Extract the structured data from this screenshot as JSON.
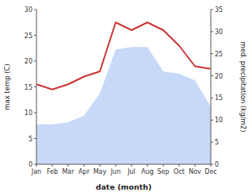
{
  "chart_data": {
    "type": "line",
    "xlabel": "date (month)",
    "ylabel": "max temp (C)",
    "y2label": "med. precipitation (kg/m2)",
    "categories": [
      "Jan",
      "Feb",
      "Mar",
      "Apr",
      "May",
      "Jun",
      "Jul",
      "Aug",
      "Sep",
      "Oct",
      "Nov",
      "Dec"
    ],
    "series": [
      {
        "type": "area",
        "axis": "y2",
        "color": "#c8d8f8",
        "values": [
          9.0,
          9.0,
          9.5,
          11.0,
          16.0,
          26.0,
          26.5,
          26.5,
          21.0,
          20.5,
          19.0,
          13.0
        ]
      },
      {
        "type": "line",
        "color": "#cc3333",
        "values": [
          15.5,
          14.5,
          15.5,
          17.0,
          18.0,
          27.5,
          26.0,
          27.5,
          26.0,
          23.0,
          19.0,
          18.5
        ]
      }
    ],
    "ylim": [
      0,
      30
    ],
    "yticks": [
      0,
      5,
      10,
      15,
      20,
      25,
      30
    ],
    "y2lim": [
      0,
      35
    ],
    "y2ticks": [
      0,
      5,
      10,
      15,
      20,
      25,
      30,
      35
    ],
    "grid": false
  }
}
